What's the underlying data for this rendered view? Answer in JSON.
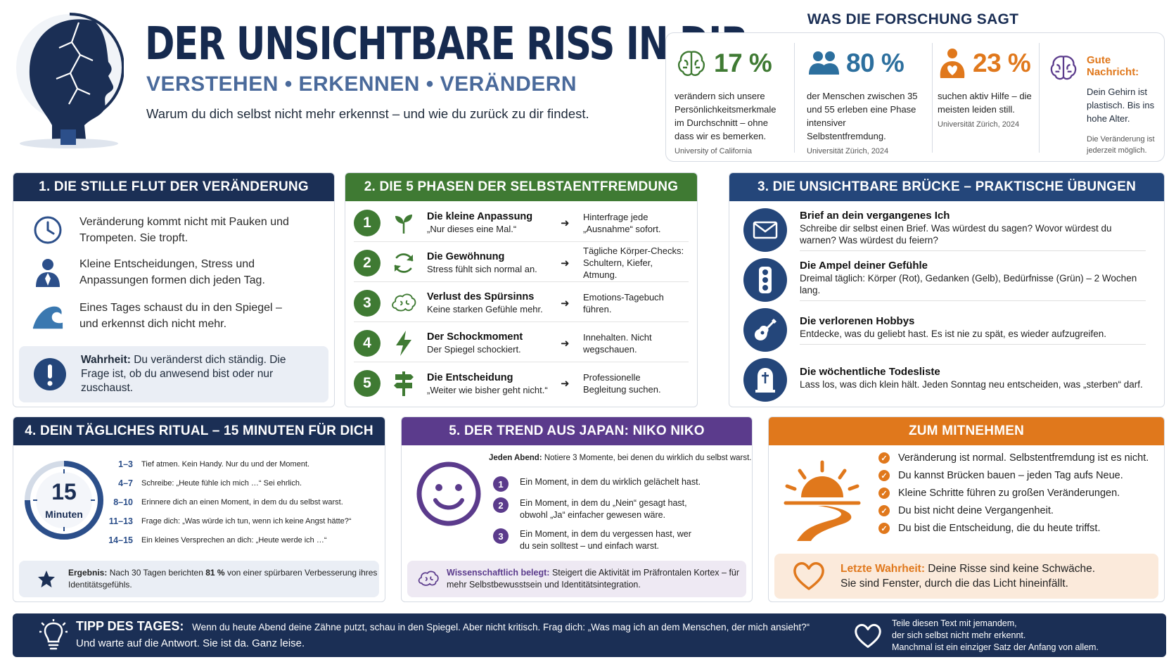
{
  "header": {
    "title": "DER UNSICHTBARE RISS IN DIR",
    "subtitle": "VERSTEHEN • ERKENNEN • VERÄNDERN",
    "tagline": "Warum du dich selbst nicht mehr erkennst – und wie du zurück zu dir findest."
  },
  "research": {
    "title": "WAS DIE FORSCHUNG SAGT",
    "stats": [
      {
        "value": "17 %",
        "icon": "brain-icon",
        "color": "#3f7a33",
        "text": "verändern sich unsere Persönlichkeitsmerkmale im Durchschnitt – ohne dass wir es bemerken.",
        "source": "University of California"
      },
      {
        "value": "80 %",
        "icon": "people-icon",
        "color": "#2c6f9e",
        "text": "der Menschen zwischen 35 und 55 erleben eine Phase intensiver Selbstentfremdung.",
        "source": "Universität Zürich, 2024"
      },
      {
        "value": "23 %",
        "icon": "person-heart-icon",
        "color": "#e0781c",
        "text": "suchen aktiv Hilfe – die meisten leiden still.",
        "source": "Universität Zürich, 2024"
      }
    ],
    "good_news": {
      "title": "Gute Nachricht:",
      "text": "Dein Gehirn ist plastisch. Bis ins hohe Alter.",
      "note": "Die Veränderung ist jederzeit möglich."
    }
  },
  "panel1": {
    "title": "1.  DIE STILLE FLUT DER VERÄNDERUNG",
    "rows": [
      {
        "icon": "clock-icon",
        "text": "Veränderung kommt nicht mit Pauken und Trompeten. Sie tropft."
      },
      {
        "icon": "person-icon",
        "text": "Kleine Entscheidungen, Stress und Anpassungen formen dich jeden Tag."
      },
      {
        "icon": "wave-icon",
        "text": "Eines Tages schaust du in den Spiegel – und erkennst dich nicht mehr."
      }
    ],
    "truth_label": "Wahrheit:",
    "truth_text": "Du veränderst dich ständig. Die Frage ist, ob du anwesend bist oder nur zuschaust."
  },
  "panel2": {
    "title": "2.  DIE 5 PHASEN DER SELBSTAENTFREMDUNG",
    "phases": [
      {
        "num": "1",
        "icon": "sprout-icon",
        "name": "Die kleine Anpassung",
        "desc": "„Nur dieses eine Mal.“",
        "tip": "Hinterfrage jede „Ausnahme“ sofort."
      },
      {
        "num": "2",
        "icon": "cycle-icon",
        "name": "Die Gewöhnung",
        "desc": "Stress fühlt sich normal an.",
        "tip": "Tägliche Körper-Checks: Schultern, Kiefer, Atmung."
      },
      {
        "num": "3",
        "icon": "brain-icon",
        "name": "Verlust des Spürsinns",
        "desc": "Keine starken Gefühle mehr.",
        "tip": "Emotions-Tagebuch führen."
      },
      {
        "num": "4",
        "icon": "lightning-icon",
        "name": "Der Schockmoment",
        "desc": "Der Spiegel schockiert.",
        "tip": "Innehalten. Nicht wegschauen."
      },
      {
        "num": "5",
        "icon": "signpost-icon",
        "name": "Die Entscheidung",
        "desc": "„Weiter wie bisher geht nicht.“",
        "tip": "Professionelle Begleitung suchen."
      }
    ]
  },
  "panel3": {
    "title": "3.  DIE UNSICHTBARE BRÜCKE – PRAKTISCHE ÜBUNGEN",
    "exercises": [
      {
        "icon": "envelope-icon",
        "name": "Brief an dein vergangenes Ich",
        "text": "Schreibe dir selbst einen Brief. Was würdest du sagen? Wovor würdest du warnen? Was würdest du feiern?"
      },
      {
        "icon": "traffic-light-icon",
        "name": "Die Ampel deiner Gefühle",
        "text": "Dreimal täglich: Körper (Rot), Gedanken (Gelb), Bedürfnisse (Grün) – 2 Wochen lang."
      },
      {
        "icon": "guitar-icon",
        "name": "Die verlorenen Hobbys",
        "text": "Entdecke, was du geliebt hast. Es ist nie zu spät, es wieder aufzugreifen."
      },
      {
        "icon": "tombstone-icon",
        "name": "Die wöchentliche Todesliste",
        "text": "Lass los, was dich klein hält. Jeden Sonntag neu entscheiden, was „sterben“ darf."
      }
    ]
  },
  "panel4": {
    "title": "4.  DEIN TÄGLICHES RITUAL – 15 MINUTEN FÜR DICH",
    "timer_value": "15",
    "timer_unit": "Minuten",
    "steps": [
      {
        "range": "1–3",
        "text": "Tief atmen. Kein Handy. Nur du und der Moment."
      },
      {
        "range": "4–7",
        "text": "Schreibe: „Heute fühle ich mich …“ Sei ehrlich."
      },
      {
        "range": "8–10",
        "text": "Erinnere dich an einen Moment, in dem du du selbst warst."
      },
      {
        "range": "11–13",
        "text": "Frage dich: „Was würde ich tun, wenn ich keine Angst hätte?“"
      },
      {
        "range": "14–15",
        "text": "Ein kleines Versprechen an dich: „Heute werde ich …“"
      }
    ],
    "result_label": "Ergebnis:",
    "result_pre": "Nach 30 Tagen berichten",
    "result_pct": "81 %",
    "result_post": "von einer spürbaren Verbesserung ihres Identitätsgefühls."
  },
  "panel5": {
    "title": "5.  DER TREND AUS JAPAN: NIKO NIKO",
    "intro_label": "Jeden Abend:",
    "intro_text": "Notiere 3 Momente, bei denen du wirklich du selbst warst.",
    "items": [
      {
        "num": "1",
        "text": "Ein Moment, in dem du wirklich gelächelt hast."
      },
      {
        "num": "2",
        "text": "Ein Moment, in dem du „Nein“ gesagt hast, obwohl „Ja“ einfacher gewesen wäre."
      },
      {
        "num": "3",
        "text": "Ein Moment, in dem du vergessen hast, wer du sein solltest – und einfach warst."
      }
    ],
    "sci_label": "Wissenschaftlich belegt:",
    "sci_text": "Steigert die Aktivität im Präfrontalen Kortex – für mehr Selbstbewusstsein und Identitätsintegration."
  },
  "panel6": {
    "title": "ZUM MITNEHMEN",
    "items": [
      "Veränderung ist normal. Selbstentfremdung ist es nicht.",
      "Du kannst Brücken bauen – jeden Tag aufs Neue.",
      "Kleine Schritte führen zu großen Veränderungen.",
      "Du bist nicht deine Vergangenheit.",
      "Du bist die Entscheidung, die du heute triffst."
    ],
    "truth_label": "Letzte Wahrheit:",
    "truth_line1": "Deine Risse sind keine Schwäche.",
    "truth_line2": "Sie sind Fenster, durch die das Licht hineinfällt."
  },
  "footer": {
    "tip_label": "TIPP DES TAGES:",
    "tip_line1": "Wenn du heute Abend deine Zähne putzt, schau in den Spiegel. Aber nicht kritisch. Frag dich: „Was mag ich an dem Menschen, der mich ansieht?“",
    "tip_line2": "Und warte auf die Antwort. Sie ist da. Ganz leise.",
    "share_line1": "Teile diesen Text mit jemandem,",
    "share_line2": "der sich selbst nicht mehr erkennt.",
    "share_line3": "Manchmal ist ein einziger Satz der Anfang von allem."
  },
  "colors": {
    "navy": "#1b2f55",
    "green": "#3f7a33",
    "blue": "#24467a",
    "purple": "#5b3b8c",
    "orange": "#e0781c"
  }
}
